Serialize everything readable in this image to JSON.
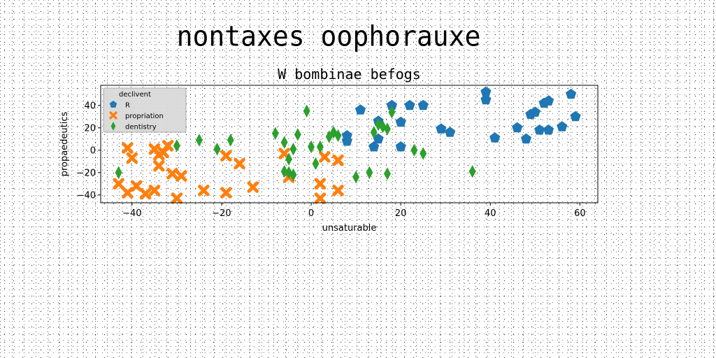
{
  "suptitle": "nontaxes oophorauxe",
  "chart_data": {
    "type": "scatter",
    "title": "W bombinae befogs",
    "xlabel": "unsaturable",
    "ylabel": "propaedeutics",
    "xlim": [
      -47,
      64
    ],
    "ylim": [
      -47,
      58
    ],
    "xticks": [
      -40,
      -20,
      0,
      20,
      40,
      60
    ],
    "yticks": [
      -40,
      -20,
      0,
      20,
      40
    ],
    "grid": false,
    "legend": {
      "title": "declivent",
      "position": "top-left"
    },
    "series": [
      {
        "name": "R",
        "marker": "pentagon",
        "color": "#1f77b4",
        "points": [
          [
            8,
            8
          ],
          [
            8,
            13
          ],
          [
            11,
            36
          ],
          [
            14,
            3
          ],
          [
            15,
            26
          ],
          [
            15,
            10
          ],
          [
            18,
            40
          ],
          [
            20,
            3
          ],
          [
            20,
            25
          ],
          [
            22,
            40
          ],
          [
            25,
            40
          ],
          [
            29,
            19
          ],
          [
            31,
            16
          ],
          [
            39,
            45
          ],
          [
            39,
            52
          ],
          [
            41,
            11
          ],
          [
            46,
            20
          ],
          [
            48,
            10
          ],
          [
            49,
            32
          ],
          [
            50,
            34
          ],
          [
            51,
            18
          ],
          [
            52,
            42
          ],
          [
            53,
            18
          ],
          [
            53,
            44
          ],
          [
            56,
            21
          ],
          [
            58,
            50
          ],
          [
            59,
            30
          ]
        ]
      },
      {
        "name": "propriation",
        "marker": "x",
        "color": "#ff7f0e",
        "points": [
          [
            -43,
            -30
          ],
          [
            -41,
            2
          ],
          [
            -41,
            -38
          ],
          [
            -40,
            -7
          ],
          [
            -39,
            -32
          ],
          [
            -37,
            -39
          ],
          [
            -35,
            -36
          ],
          [
            -35,
            1
          ],
          [
            -34,
            -4
          ],
          [
            -34,
            -14
          ],
          [
            -33,
            -2
          ],
          [
            -32,
            4
          ],
          [
            -31,
            -21
          ],
          [
            -30,
            -43
          ],
          [
            -29,
            -23
          ],
          [
            -24,
            -36
          ],
          [
            -19,
            -5
          ],
          [
            -19,
            -38
          ],
          [
            -16,
            -12
          ],
          [
            -13,
            -33
          ],
          [
            -6,
            -3
          ],
          [
            -5,
            -24
          ],
          [
            2,
            -30
          ],
          [
            2,
            -43
          ],
          [
            3,
            -6
          ],
          [
            6,
            -36
          ],
          [
            6,
            -9
          ]
        ]
      },
      {
        "name": "dentistry",
        "marker": "diamond",
        "color": "#2ca02c",
        "points": [
          [
            -43,
            -20
          ],
          [
            -30,
            4
          ],
          [
            -25,
            9
          ],
          [
            -21,
            1
          ],
          [
            -18,
            9
          ],
          [
            -8,
            15
          ],
          [
            -6,
            7
          ],
          [
            -6,
            -19
          ],
          [
            -5,
            -20
          ],
          [
            -5,
            -8
          ],
          [
            -4,
            1
          ],
          [
            -4,
            -22
          ],
          [
            -3,
            14
          ],
          [
            -1,
            35
          ],
          [
            0,
            3
          ],
          [
            1,
            -12
          ],
          [
            2,
            3
          ],
          [
            4,
            12
          ],
          [
            5,
            16
          ],
          [
            6,
            13
          ],
          [
            10,
            -24
          ],
          [
            13,
            -20
          ],
          [
            14,
            16
          ],
          [
            15,
            23
          ],
          [
            16,
            21
          ],
          [
            17,
            19
          ],
          [
            17,
            -21
          ],
          [
            18,
            34
          ],
          [
            23,
            0
          ],
          [
            25,
            -3
          ],
          [
            36,
            -19
          ]
        ]
      }
    ]
  }
}
